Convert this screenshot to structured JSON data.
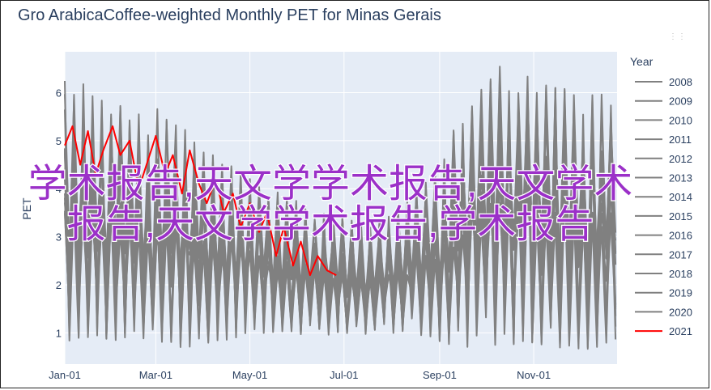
{
  "title": "Gro ArabicaCoffee-weighted Monthly PET for Minas Gerais",
  "watermark": {
    "line1": "学术报告,天文学学术报告,天文学术",
    "line2": "报告,天文学学术报告,学术报告"
  },
  "colors": {
    "plot_bg": "#e5ecf6",
    "grid": "#ffffff",
    "gray_series": "#808080",
    "highlight_series": "#ff0000",
    "text": "#2a3f5f",
    "watermark": "#9b30c8"
  },
  "chart_data": {
    "type": "line",
    "title": "Gro ArabicaCoffee-weighted Monthly PET for Minas Gerais",
    "xlabel": "",
    "ylabel": "PET",
    "x_tick_labels": [
      "Jan-01",
      "Mar-01",
      "May-01",
      "Jul-01",
      "Sep-01",
      "Nov-01"
    ],
    "x_tick_days": [
      0,
      59,
      120,
      181,
      243,
      304
    ],
    "x_range_days": [
      0,
      358
    ],
    "y_ticks": [
      1,
      2,
      3,
      4,
      5,
      6
    ],
    "ylim": [
      0.35,
      6.85
    ],
    "grid": true,
    "legend": {
      "title": "Year",
      "placement": "right",
      "years": [
        "2008",
        "2009",
        "2010",
        "2011",
        "2012",
        "2013",
        "2014",
        "2015",
        "2016",
        "2017",
        "2018",
        "2019",
        "2020",
        "2021"
      ]
    },
    "highlight_year": "2021",
    "envelope_note_free": true,
    "gray_envelope": {
      "days": [
        0,
        20,
        45,
        59,
        80,
        100,
        120,
        140,
        160,
        181,
        200,
        220,
        243,
        260,
        280,
        300,
        320,
        340,
        358
      ],
      "upper": [
        6.4,
        6.1,
        5.6,
        5.7,
        5.3,
        4.6,
        4.3,
        3.9,
        3.7,
        3.4,
        3.3,
        3.7,
        4.6,
        5.8,
        6.7,
        6.4,
        6.1,
        6.2,
        6.0
      ],
      "lower": [
        0.8,
        0.9,
        0.8,
        0.7,
        0.7,
        0.8,
        0.9,
        0.9,
        1.0,
        0.9,
        1.0,
        0.9,
        0.8,
        0.7,
        0.7,
        0.8,
        0.7,
        0.6,
        0.8
      ]
    },
    "series_2021": {
      "days": [
        0,
        5,
        10,
        15,
        20,
        25,
        31,
        36,
        42,
        48,
        54,
        59,
        65,
        70,
        76,
        81,
        87,
        92,
        98,
        103,
        109,
        114,
        120,
        126,
        131,
        137,
        142,
        148,
        153,
        159,
        164,
        170,
        176
      ],
      "values": [
        4.9,
        5.3,
        4.5,
        5.2,
        4.3,
        4.8,
        5.3,
        4.7,
        5.0,
        4.0,
        4.6,
        5.1,
        4.3,
        4.7,
        3.9,
        4.8,
        4.1,
        3.7,
        4.2,
        3.5,
        3.9,
        3.2,
        3.7,
        3.1,
        3.5,
        2.6,
        3.2,
        2.4,
        2.9,
        2.2,
        2.6,
        2.3,
        2.2
      ]
    }
  }
}
